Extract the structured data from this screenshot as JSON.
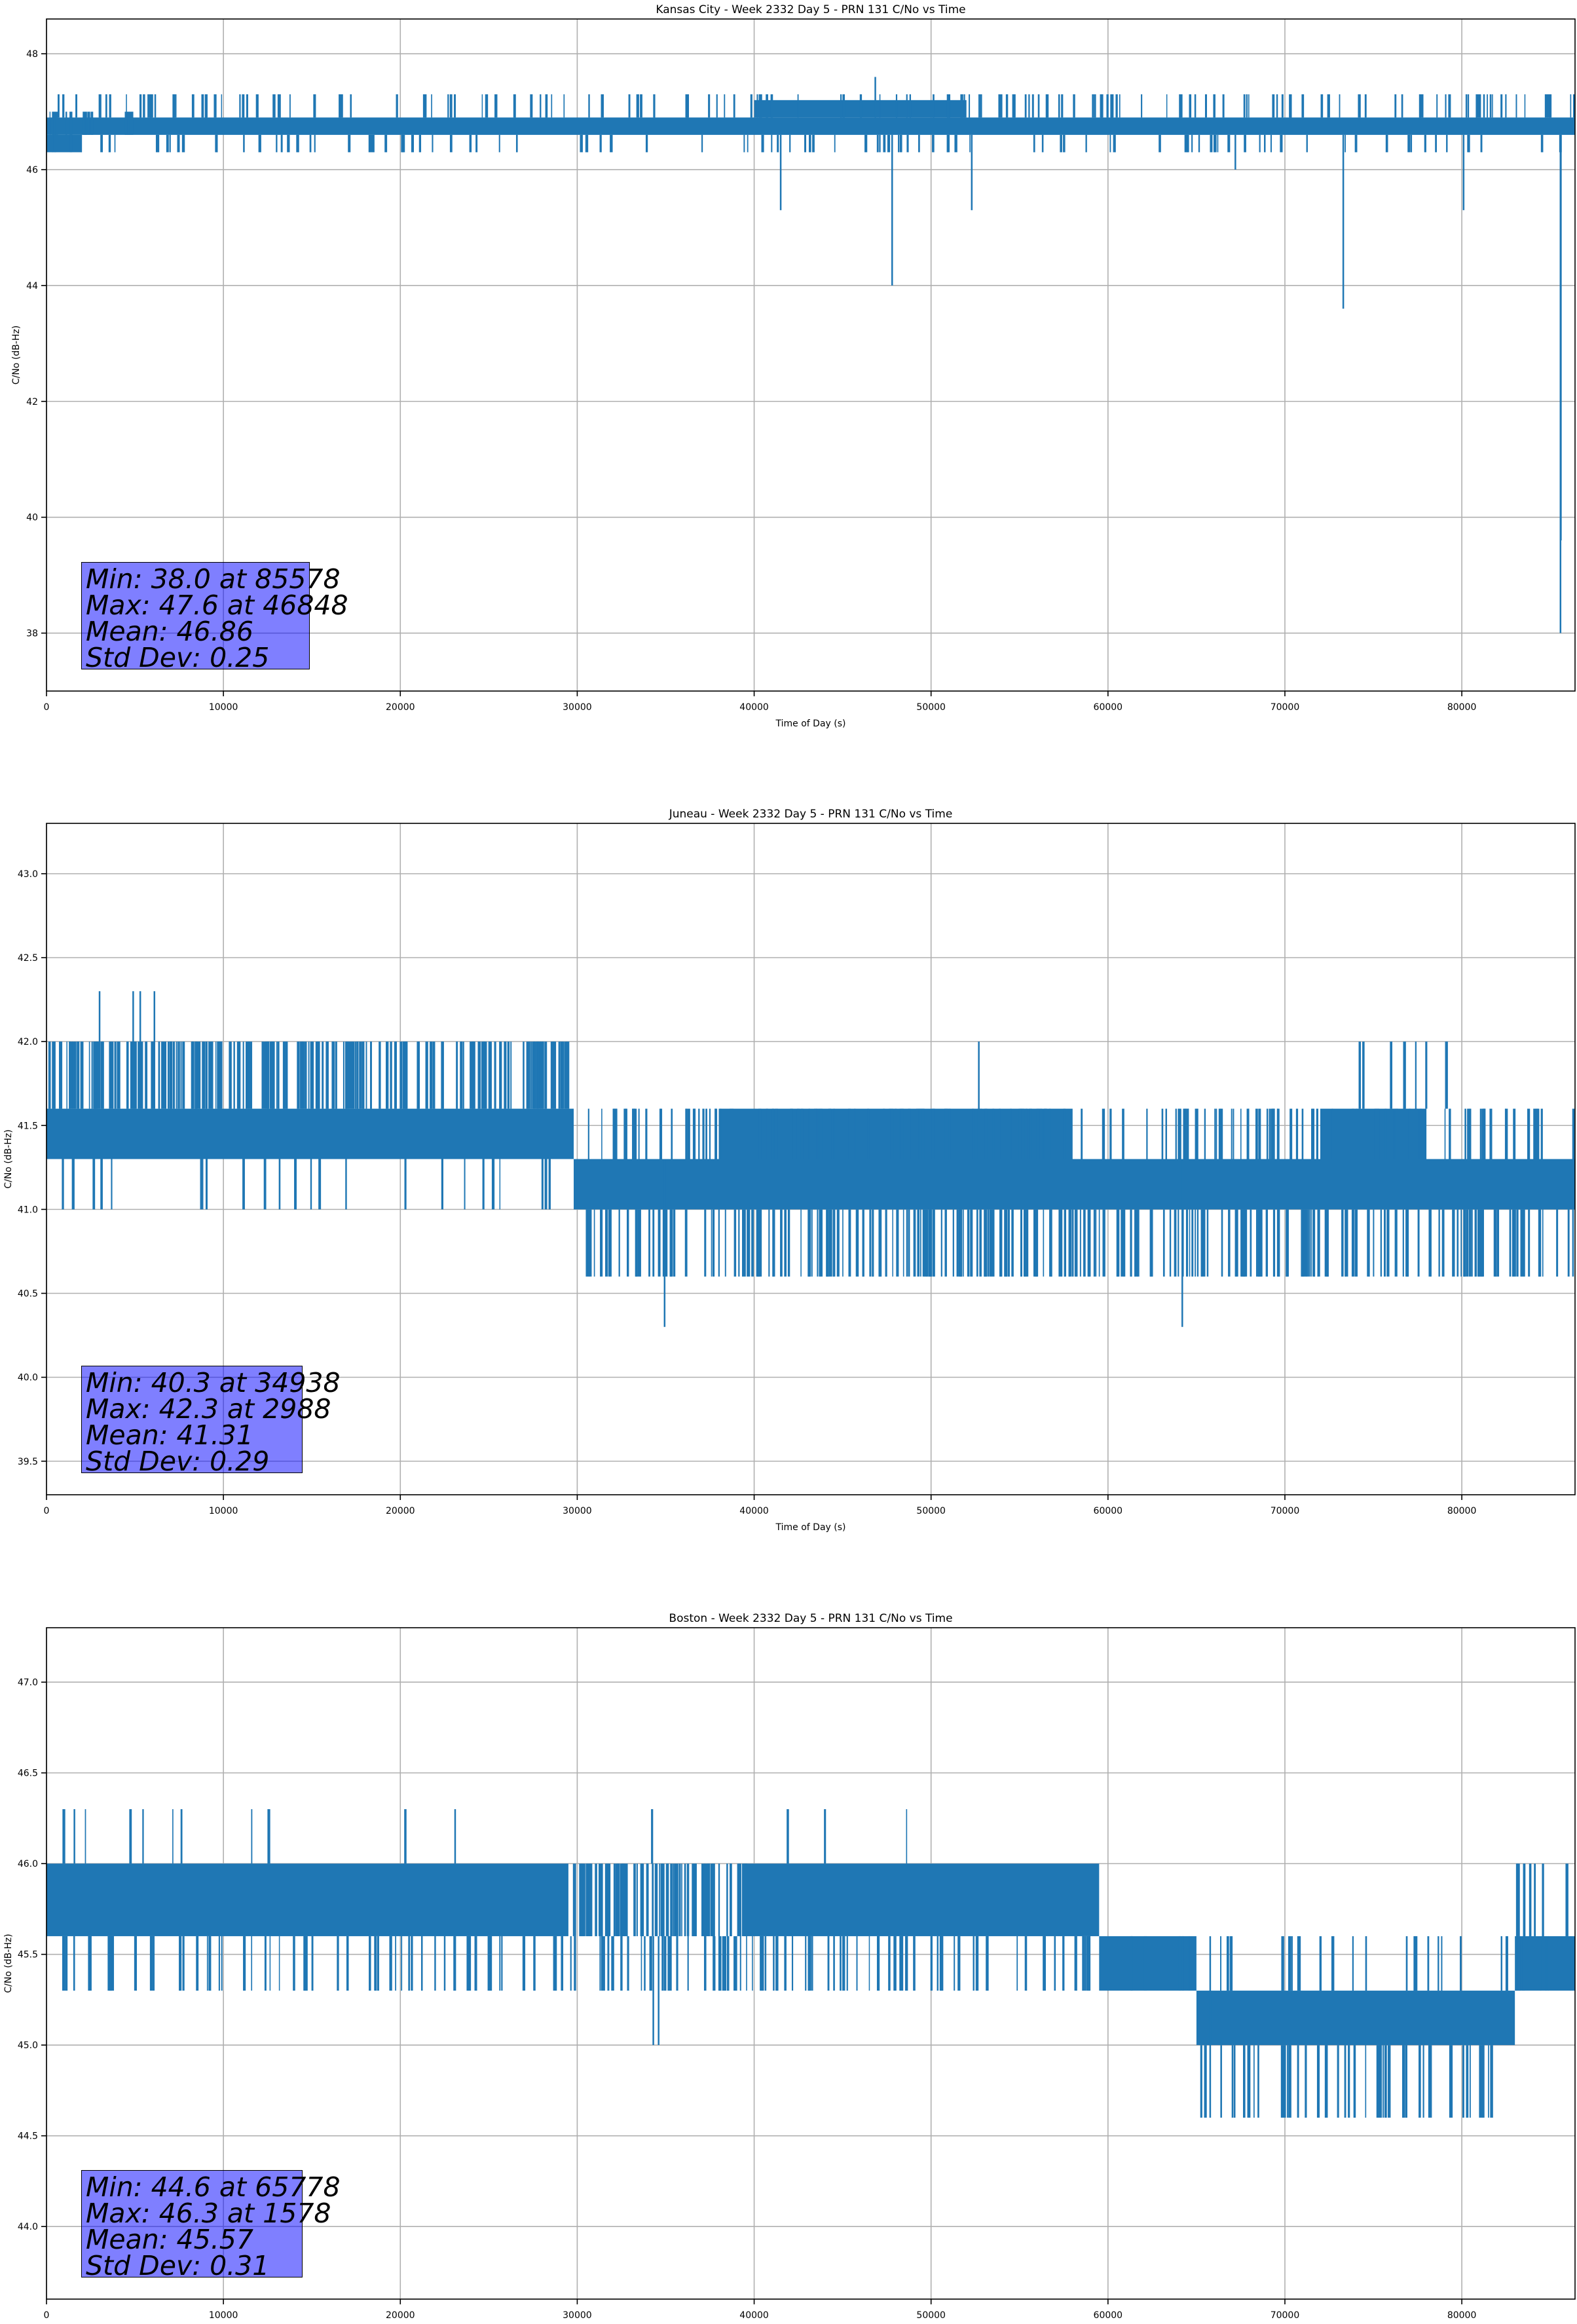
{
  "chart_data": [
    {
      "type": "line",
      "title": "Kansas City - Week 2332 Day 5 - PRN 131 C/No vs Time",
      "xlabel": "Time of Day (s)",
      "ylabel": "C/No (dB-Hz)",
      "xlim": [
        0,
        86400
      ],
      "ylim": [
        37.0,
        48.6
      ],
      "xticks": [
        0,
        10000,
        20000,
        30000,
        40000,
        50000,
        60000,
        70000,
        80000
      ],
      "yticks": [
        38,
        40,
        42,
        44,
        46,
        48
      ],
      "ytick_decimals": 0,
      "grid": true,
      "line_color": "#1f77b4",
      "series": [
        {
          "bands": [
            {
              "x": [
                0,
                86400
              ],
              "low": 46.6,
              "high": 46.9
            },
            {
              "x": [
                0,
                2000
              ],
              "low": 46.3,
              "high": 46.6
            },
            {
              "x": [
                40000,
                52000
              ],
              "low": 46.9,
              "high": 47.2
            }
          ],
          "spikes_up": [
            {
              "range": [
                500,
                86400
              ],
              "count": 170,
              "high": 47.3,
              "base": 46.9
            },
            {
              "range": [
                0,
                5000
              ],
              "count": 20,
              "high": 47.0,
              "base": 46.6
            }
          ],
          "spikes_down": [
            {
              "range": [
                0,
                86400
              ],
              "count": 110,
              "low": 46.3,
              "base": 46.6
            }
          ],
          "dips": [
            {
              "x": 41500,
              "y": 45.3
            },
            {
              "x": 46848,
              "y": 47.6,
              "up": true
            },
            {
              "x": 47800,
              "y": 44.0
            },
            {
              "x": 52300,
              "y": 45.3
            },
            {
              "x": 67200,
              "y": 46.0
            },
            {
              "x": 73300,
              "y": 43.6
            },
            {
              "x": 80100,
              "y": 45.3
            },
            {
              "x": 85578,
              "y": 38.0
            },
            {
              "x": 85600,
              "y": 39.6
            }
          ]
        }
      ],
      "stats": [
        "Min: 38.0 at 85578",
        "Max: 47.6 at 46848",
        "Mean: 46.86",
        "Std Dev: 0.25"
      ]
    },
    {
      "type": "line",
      "title": "Juneau - Week 2332 Day 5 - PRN 131 C/No vs Time",
      "xlabel": "Time of Day (s)",
      "ylabel": "C/No (dB-Hz)",
      "xlim": [
        0,
        86400
      ],
      "ylim": [
        39.3,
        43.3
      ],
      "xticks": [
        0,
        10000,
        20000,
        30000,
        40000,
        50000,
        60000,
        70000,
        80000
      ],
      "yticks": [
        39.5,
        40.0,
        40.5,
        41.0,
        41.5,
        42.0,
        42.5,
        43.0
      ],
      "ytick_decimals": 1,
      "grid": true,
      "line_color": "#1f77b4",
      "series": [
        {
          "bands": [
            {
              "x": [
                0,
                29800
              ],
              "low": 41.3,
              "high": 41.6
            },
            {
              "x": [
                29800,
                86400
              ],
              "low": 41.0,
              "high": 41.3
            },
            {
              "x": [
                38000,
                58000
              ],
              "low": 41.3,
              "high": 41.6
            },
            {
              "x": [
                72000,
                78000
              ],
              "low": 41.3,
              "high": 41.6
            }
          ],
          "spikes_up": [
            {
              "range": [
                0,
                29500
              ],
              "count": 240,
              "high": 42.0,
              "base": 41.6
            },
            {
              "range": [
                30000,
                86400
              ],
              "count": 170,
              "high": 41.6,
              "base": 41.3
            },
            {
              "range": [
                73000,
                80000
              ],
              "count": 8,
              "high": 42.0,
              "base": 41.6
            }
          ],
          "spikes_down": [
            {
              "range": [
                0,
                29500
              ],
              "count": 25,
              "low": 41.0,
              "base": 41.3
            },
            {
              "range": [
                30000,
                86400
              ],
              "count": 280,
              "low": 40.6,
              "base": 41.0
            }
          ],
          "dips": [
            {
              "x": 3000,
              "y": 42.3,
              "up": true
            },
            {
              "x": 4900,
              "y": 42.3,
              "up": true
            },
            {
              "x": 5300,
              "y": 42.3,
              "up": true
            },
            {
              "x": 6100,
              "y": 42.3,
              "up": true
            },
            {
              "x": 52700,
              "y": 42.0,
              "up": true
            },
            {
              "x": 34938,
              "y": 40.3
            },
            {
              "x": 64200,
              "y": 40.3
            }
          ]
        }
      ],
      "stats": [
        "Min: 40.3 at 34938",
        "Max: 42.3 at 2988",
        "Mean: 41.31",
        "Std Dev: 0.29"
      ]
    },
    {
      "type": "line",
      "title": "Boston - Week 2332 Day 5 - PRN 131 C/No vs Time",
      "xlabel": "Time of Day (s)",
      "ylabel": "C/No (dB-Hz)",
      "xlim": [
        0,
        86400
      ],
      "ylim": [
        43.6,
        47.3
      ],
      "xticks": [
        0,
        10000,
        20000,
        30000,
        40000,
        50000,
        60000,
        70000,
        80000
      ],
      "yticks": [
        44.0,
        44.5,
        45.0,
        45.5,
        46.0,
        46.5,
        47.0
      ],
      "ytick_decimals": 1,
      "grid": true,
      "line_color": "#1f77b4",
      "series": [
        {
          "bands": [
            {
              "x": [
                0,
                29500
              ],
              "low": 45.6,
              "high": 46.0
            },
            {
              "x": [
                39500,
                59500
              ],
              "low": 45.6,
              "high": 46.0
            },
            {
              "x": [
                59500,
                65000
              ],
              "low": 45.3,
              "high": 45.6
            },
            {
              "x": [
                65000,
                83000
              ],
              "low": 45.0,
              "high": 45.3
            },
            {
              "x": [
                83000,
                86400
              ],
              "low": 45.3,
              "high": 45.6
            }
          ],
          "spikes_up": [
            {
              "range": [
                29500,
                39500
              ],
              "count": 90,
              "high": 46.0,
              "base": 45.6
            },
            {
              "range": [
                0,
                50000
              ],
              "count": 14,
              "high": 46.3,
              "base": 46.0
            },
            {
              "range": [
                83000,
                86400
              ],
              "count": 10,
              "high": 46.0,
              "base": 45.6
            },
            {
              "range": [
                60000,
                84000
              ],
              "count": 30,
              "high": 45.6,
              "base": 45.3
            }
          ],
          "spikes_down": [
            {
              "range": [
                0,
                59500
              ],
              "count": 150,
              "low": 45.3,
              "base": 45.6
            },
            {
              "range": [
                64000,
                82000
              ],
              "count": 55,
              "low": 44.6,
              "base": 45.0
            },
            {
              "range": [
                83000,
                86400
              ],
              "count": 10,
              "low": 45.3,
              "base": 45.6
            }
          ],
          "dips": [
            {
              "x": 1578,
              "y": 46.3,
              "up": true
            },
            {
              "x": 34300,
              "y": 45.0
            },
            {
              "x": 34600,
              "y": 45.0
            },
            {
              "x": 65778,
              "y": 44.6
            }
          ]
        }
      ],
      "stats": [
        "Min: 44.6 at 65778",
        "Max: 46.3 at 1578",
        "Mean: 45.57",
        "Std Dev: 0.31"
      ]
    }
  ]
}
